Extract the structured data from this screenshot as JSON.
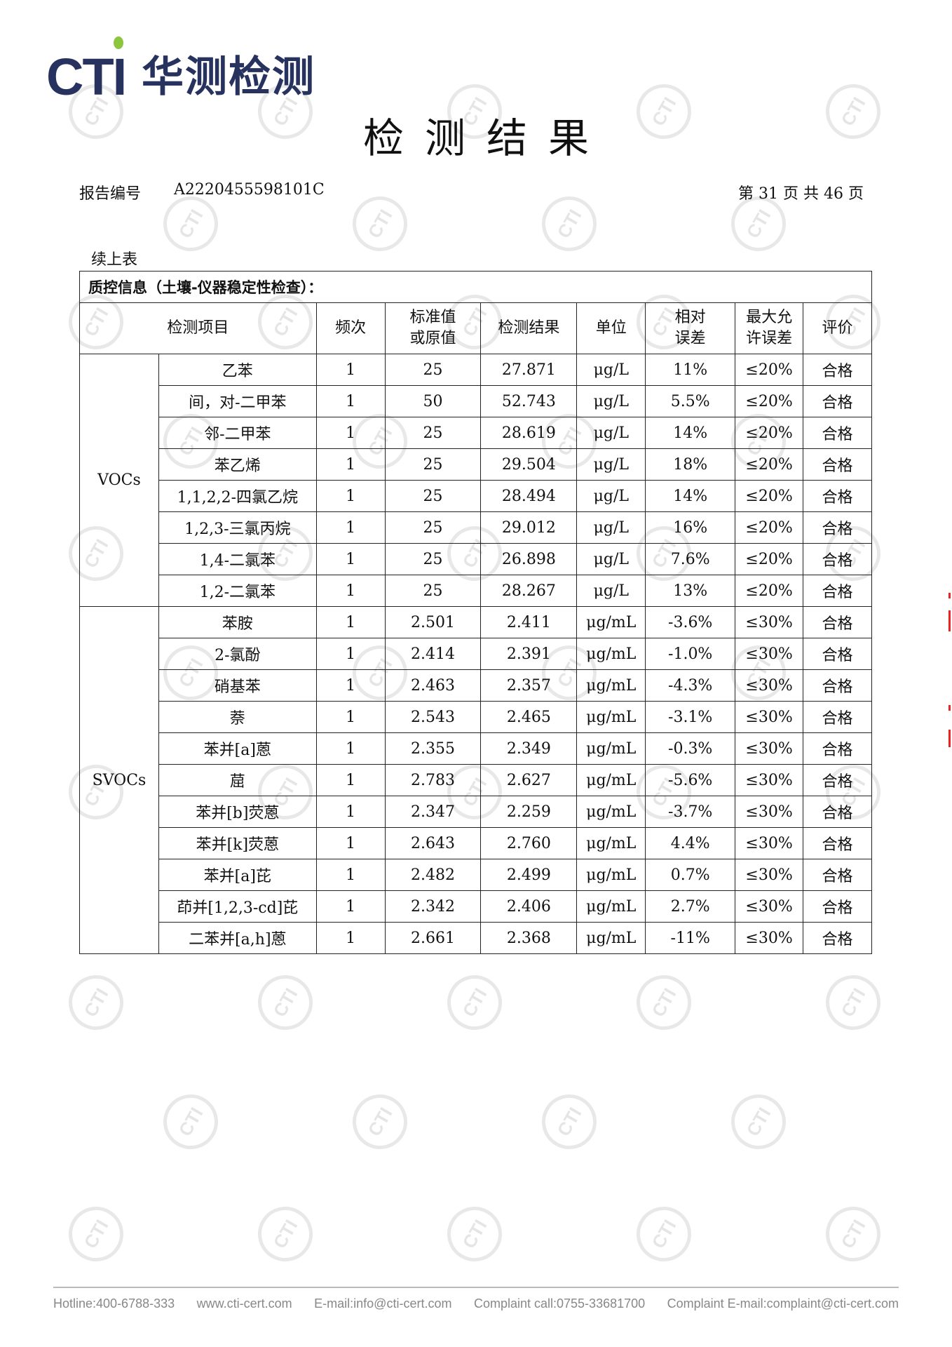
{
  "logo": {
    "latin": "CTI",
    "chinese": "华测检测"
  },
  "title": "检测结果",
  "report": {
    "label": "报告编号",
    "number": "A2220455598101C",
    "page_label": "第 31 页 共 46 页"
  },
  "continued": "续上表",
  "table": {
    "caption": "质控信息（土壤-仪器稳定性检查）：",
    "headers": [
      "检测项目",
      "频次",
      "标准值或原值",
      "检测结果",
      "单位",
      "相对误差",
      "最大允许误差",
      "评价"
    ],
    "header_lines": {
      "std": [
        "标准值",
        "或原值"
      ],
      "rel": [
        "相对",
        "误差"
      ],
      "max": [
        "最大允",
        "许误差"
      ]
    },
    "groups": [
      {
        "name": "VOCs",
        "rows": [
          [
            "乙苯",
            "1",
            "25",
            "27.871",
            "μg/L",
            "11%",
            "≤20%",
            "合格"
          ],
          [
            "间，对-二甲苯",
            "1",
            "50",
            "52.743",
            "μg/L",
            "5.5%",
            "≤20%",
            "合格"
          ],
          [
            "邻-二甲苯",
            "1",
            "25",
            "28.619",
            "μg/L",
            "14%",
            "≤20%",
            "合格"
          ],
          [
            "苯乙烯",
            "1",
            "25",
            "29.504",
            "μg/L",
            "18%",
            "≤20%",
            "合格"
          ],
          [
            "1,1,2,2-四氯乙烷",
            "1",
            "25",
            "28.494",
            "μg/L",
            "14%",
            "≤20%",
            "合格"
          ],
          [
            "1,2,3-三氯丙烷",
            "1",
            "25",
            "29.012",
            "μg/L",
            "16%",
            "≤20%",
            "合格"
          ],
          [
            "1,4-二氯苯",
            "1",
            "25",
            "26.898",
            "μg/L",
            "7.6%",
            "≤20%",
            "合格"
          ],
          [
            "1,2-二氯苯",
            "1",
            "25",
            "28.267",
            "μg/L",
            "13%",
            "≤20%",
            "合格"
          ]
        ]
      },
      {
        "name": "SVOCs",
        "rows": [
          [
            "苯胺",
            "1",
            "2.501",
            "2.411",
            "μg/mL",
            "-3.6%",
            "≤30%",
            "合格"
          ],
          [
            "2-氯酚",
            "1",
            "2.414",
            "2.391",
            "μg/mL",
            "-1.0%",
            "≤30%",
            "合格"
          ],
          [
            "硝基苯",
            "1",
            "2.463",
            "2.357",
            "μg/mL",
            "-4.3%",
            "≤30%",
            "合格"
          ],
          [
            "萘",
            "1",
            "2.543",
            "2.465",
            "μg/mL",
            "-3.1%",
            "≤30%",
            "合格"
          ],
          [
            "苯并[a]蒽",
            "1",
            "2.355",
            "2.349",
            "μg/mL",
            "-0.3%",
            "≤30%",
            "合格"
          ],
          [
            "䓛",
            "1",
            "2.783",
            "2.627",
            "μg/mL",
            "-5.6%",
            "≤30%",
            "合格"
          ],
          [
            "苯并[b]荧蒽",
            "1",
            "2.347",
            "2.259",
            "μg/mL",
            "-3.7%",
            "≤30%",
            "合格"
          ],
          [
            "苯并[k]荧蒽",
            "1",
            "2.643",
            "2.760",
            "μg/mL",
            "4.4%",
            "≤30%",
            "合格"
          ],
          [
            "苯并[a]芘",
            "1",
            "2.482",
            "2.499",
            "μg/mL",
            "0.7%",
            "≤30%",
            "合格"
          ],
          [
            "茚并[1,2,3-cd]芘",
            "1",
            "2.342",
            "2.406",
            "μg/mL",
            "2.7%",
            "≤30%",
            "合格"
          ],
          [
            "二苯并[a,h]蒽",
            "1",
            "2.661",
            "2.368",
            "μg/mL",
            "-11%",
            "≤30%",
            "合格"
          ]
        ]
      }
    ]
  },
  "footer": [
    "Hotline:400-6788-333",
    "www.cti-cert.com",
    "E-mail:info@cti-cert.com",
    "Complaint call:0755-33681700",
    "Complaint E-mail:complaint@cti-cert.com"
  ],
  "watermark_text": "CTI",
  "colors": {
    "brand": "#27325f",
    "brand_dot": "#8cc63f",
    "footer_text": "#888888"
  }
}
